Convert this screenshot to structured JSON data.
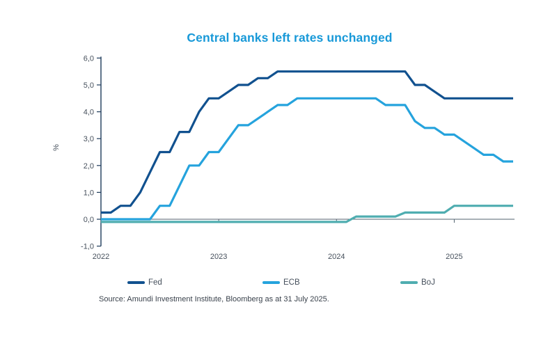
{
  "title": "Central banks left rates unchanged",
  "source": "Source: Amundi Investment Institute, Bloomberg as at 31 July 2025.",
  "colors": {
    "title": "#1899d8",
    "axis_line": "#1d3a5a",
    "zero_line": "#51616f",
    "tick_text": "#46505c",
    "fed": "#11518f",
    "ecb": "#25a3dd",
    "boj": "#4fadb0"
  },
  "chart_data": {
    "type": "line",
    "title": "Central banks left rates unchanged",
    "xlabel": "",
    "ylabel": "%",
    "ylim": [
      -1.0,
      6.0
    ],
    "grid": false,
    "legend_position": "bottom",
    "y_ticks": [
      6,
      5,
      4,
      3,
      2,
      1,
      0,
      -1
    ],
    "y_tick_labels": [
      "6,0",
      "5,0",
      "4,0",
      "3,0",
      "2,0",
      "1,0",
      "0,0",
      "-1,0"
    ],
    "x_tick_labels": [
      "2022",
      "2023",
      "2024",
      "2025"
    ],
    "x_tick_month_index": [
      0,
      12,
      24,
      36
    ],
    "x_unit": "monthly, Jan 2022 - Jul 2025",
    "series": [
      {
        "name": "Fed",
        "color": "#11518f",
        "values": [
          0.25,
          0.25,
          0.5,
          0.5,
          1.0,
          1.75,
          2.5,
          2.5,
          3.25,
          3.25,
          4.0,
          4.5,
          4.5,
          4.75,
          5.0,
          5.0,
          5.25,
          5.25,
          5.5,
          5.5,
          5.5,
          5.5,
          5.5,
          5.5,
          5.5,
          5.5,
          5.5,
          5.5,
          5.5,
          5.5,
          5.5,
          5.5,
          5.0,
          5.0,
          4.75,
          4.5,
          4.5,
          4.5,
          4.5,
          4.5,
          4.5,
          4.5,
          4.5
        ]
      },
      {
        "name": "ECB",
        "color": "#25a3dd",
        "values": [
          0.0,
          0.0,
          0.0,
          0.0,
          0.0,
          0.0,
          0.5,
          0.5,
          1.25,
          2.0,
          2.0,
          2.5,
          2.5,
          3.0,
          3.5,
          3.5,
          3.75,
          4.0,
          4.25,
          4.25,
          4.5,
          4.5,
          4.5,
          4.5,
          4.5,
          4.5,
          4.5,
          4.5,
          4.5,
          4.25,
          4.25,
          4.25,
          3.65,
          3.4,
          3.4,
          3.15,
          3.15,
          2.9,
          2.65,
          2.4,
          2.4,
          2.15,
          2.15
        ]
      },
      {
        "name": "BoJ",
        "color": "#4fadb0",
        "values": [
          -0.1,
          -0.1,
          -0.1,
          -0.1,
          -0.1,
          -0.1,
          -0.1,
          -0.1,
          -0.1,
          -0.1,
          -0.1,
          -0.1,
          -0.1,
          -0.1,
          -0.1,
          -0.1,
          -0.1,
          -0.1,
          -0.1,
          -0.1,
          -0.1,
          -0.1,
          -0.1,
          -0.1,
          -0.1,
          -0.1,
          0.1,
          0.1,
          0.1,
          0.1,
          0.1,
          0.25,
          0.25,
          0.25,
          0.25,
          0.25,
          0.5,
          0.5,
          0.5,
          0.5,
          0.5,
          0.5,
          0.5
        ]
      }
    ]
  }
}
